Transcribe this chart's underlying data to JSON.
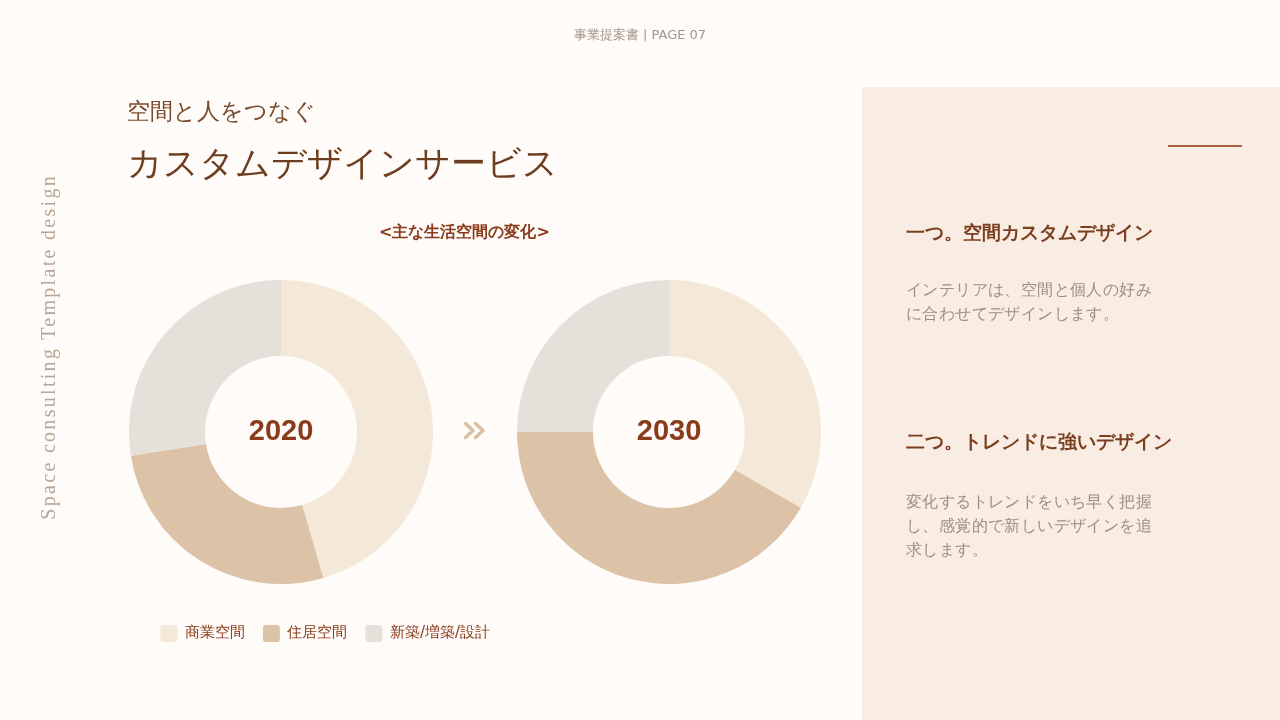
{
  "chart_data": [
    {
      "type": "other",
      "title": "カスタムデザインサービス",
      "subtitle": "空間と人をつなぐ",
      "annotations": [
        "事業提案書 | PAGE 07",
        "Space consulting Template design"
      ]
    },
    {
      "type": "donut",
      "title": "<主な生活空間の変化>",
      "categories": [
        "商業空間",
        "住居空間",
        "新築/増築/設計"
      ],
      "values": [
        45.5,
        27,
        27.5
      ],
      "colors": [
        "#f4e9d8",
        "#dcc3a8",
        "#e5e0da"
      ],
      "legend": "bottom right",
      "annotations": [
        "2020"
      ]
    },
    {
      "type": "donut",
      "categories": [
        null,
        null,
        null
      ],
      "values": [
        33.3,
        41.7,
        25
      ],
      "colors": [
        "#f4e9d8",
        "#dcc3a8",
        "#e5e0da"
      ],
      "legend": false,
      "annotations": [
        "2030"
      ]
    },
    {
      "type": "other",
      "annotations": [
        "一つ。空間カスタムデザイン",
        "インテリアは、空間と個人の好みに合わせてデザインします。",
        "二つ。トレンドに強いデザイン",
        "変化するトレンドをいち早く把握し、感覚的で新しいデザインを追求します。"
      ]
    }
  ]
}
